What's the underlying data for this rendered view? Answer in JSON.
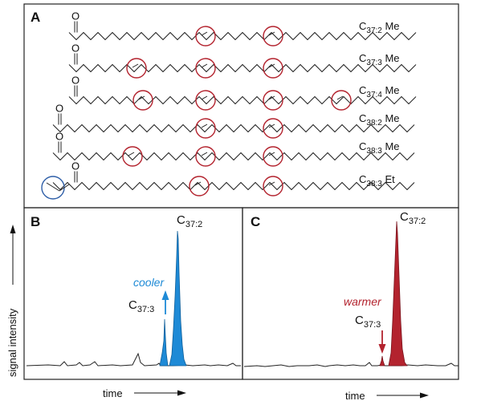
{
  "panel_a": {
    "label": "A",
    "molecules": [
      {
        "name": "C37:2 Me",
        "base": "C",
        "sub": "37:2",
        "suffix": "Me"
      },
      {
        "name": "C37:3 Me",
        "base": "C",
        "sub": "37:3",
        "suffix": "Me"
      },
      {
        "name": "C37:4 Me",
        "base": "C",
        "sub": "37:4",
        "suffix": "Me"
      },
      {
        "name": "C38:2 Me",
        "base": "C",
        "sub": "38:2",
        "suffix": "Me"
      },
      {
        "name": "C38:3 Me",
        "base": "C",
        "sub": "38:3",
        "suffix": "Me"
      },
      {
        "name": "C38:3 Et",
        "base": "C",
        "sub": "38:3",
        "suffix": "Et"
      }
    ],
    "carbonyl_atom": "O"
  },
  "panel_b": {
    "label": "B",
    "peak_major": {
      "base": "C",
      "sub": "37:2"
    },
    "peak_minor": {
      "base": "C",
      "sub": "37:3"
    },
    "arrow_label": "cooler",
    "x_axis_label": "time",
    "fill_color": "#1e8ad6"
  },
  "panel_c": {
    "label": "C",
    "peak_major": {
      "base": "C",
      "sub": "37:2"
    },
    "peak_minor": {
      "base": "C",
      "sub": "37:3"
    },
    "arrow_label": "warmer",
    "x_axis_label": "time",
    "fill_color": "#b3232e"
  },
  "y_axis_label": "signal intensity",
  "colors": {
    "double_bond_circle": "#b3232e",
    "ethyl_circle": "#2f5fa8",
    "cooler": "#1e8ad6",
    "warmer": "#b3232e"
  }
}
